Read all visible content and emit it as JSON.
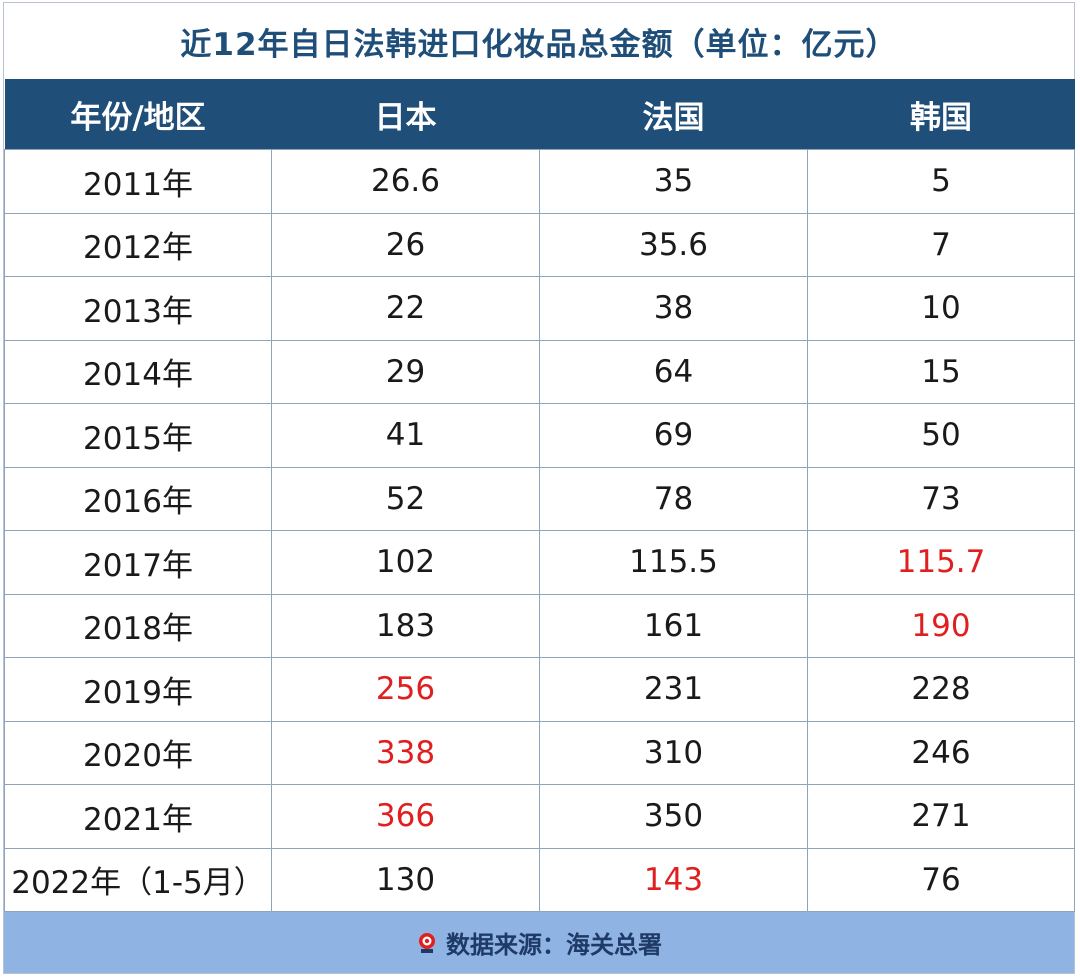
{
  "title": "近12年自日法韩进口化妆品总金额（单位：亿元）",
  "chart_data": {
    "type": "table",
    "title": "近12年自日法韩进口化妆品总金额（单位：亿元）",
    "columns": [
      "年份/地区",
      "日本",
      "法国",
      "韩国"
    ],
    "rows": [
      {
        "year": "2011年",
        "cells": [
          {
            "v": "26.6",
            "red": false
          },
          {
            "v": "35",
            "red": false
          },
          {
            "v": "5",
            "red": false
          }
        ]
      },
      {
        "year": "2012年",
        "cells": [
          {
            "v": "26",
            "red": false
          },
          {
            "v": "35.6",
            "red": false
          },
          {
            "v": "7",
            "red": false
          }
        ]
      },
      {
        "year": "2013年",
        "cells": [
          {
            "v": "22",
            "red": false
          },
          {
            "v": "38",
            "red": false
          },
          {
            "v": "10",
            "red": false
          }
        ]
      },
      {
        "year": "2014年",
        "cells": [
          {
            "v": "29",
            "red": false
          },
          {
            "v": "64",
            "red": false
          },
          {
            "v": "15",
            "red": false
          }
        ]
      },
      {
        "year": "2015年",
        "cells": [
          {
            "v": "41",
            "red": false
          },
          {
            "v": "69",
            "red": false
          },
          {
            "v": "50",
            "red": false
          }
        ]
      },
      {
        "year": "2016年",
        "cells": [
          {
            "v": "52",
            "red": false
          },
          {
            "v": "78",
            "red": false
          },
          {
            "v": "73",
            "red": false
          }
        ]
      },
      {
        "year": "2017年",
        "cells": [
          {
            "v": "102",
            "red": false
          },
          {
            "v": "115.5",
            "red": false
          },
          {
            "v": "115.7",
            "red": true
          }
        ]
      },
      {
        "year": "2018年",
        "cells": [
          {
            "v": "183",
            "red": false
          },
          {
            "v": "161",
            "red": false
          },
          {
            "v": "190",
            "red": true
          }
        ]
      },
      {
        "year": "2019年",
        "cells": [
          {
            "v": "256",
            "red": true
          },
          {
            "v": "231",
            "red": false
          },
          {
            "v": "228",
            "red": false
          }
        ]
      },
      {
        "year": "2020年",
        "cells": [
          {
            "v": "338",
            "red": true
          },
          {
            "v": "310",
            "red": false
          },
          {
            "v": "246",
            "red": false
          }
        ]
      },
      {
        "year": "2021年",
        "cells": [
          {
            "v": "366",
            "red": true
          },
          {
            "v": "350",
            "red": false
          },
          {
            "v": "271",
            "red": false
          }
        ]
      },
      {
        "year": "2022年（1-5月）",
        "cells": [
          {
            "v": "130",
            "red": false
          },
          {
            "v": "143",
            "red": true
          },
          {
            "v": "76",
            "red": false
          }
        ]
      }
    ]
  },
  "footer": {
    "source_text": "数据来源：海关总署",
    "logo_icon": "brand-logo-icon"
  },
  "colors": {
    "header_bg": "#1f4e79",
    "title_text": "#1f4e79",
    "highlight": "#e02020",
    "footer_bg": "#8fb3e2"
  }
}
